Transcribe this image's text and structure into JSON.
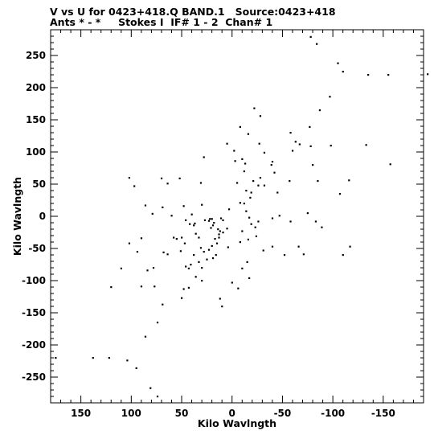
{
  "header": {
    "line1": "V vs U for 0423+418.Q BAND.1   Source:0423+418",
    "line2": "Ants * - *     Stokes I  IF# 1 - 2  Chan# 1"
  },
  "chart_data": {
    "type": "scatter",
    "title": "V vs U for 0423+418.Q BAND.1   Source:0423+418",
    "subtitle": "Ants * - *     Stokes I  IF# 1 - 2  Chan# 1",
    "xlabel": "Kilo Wavlngth",
    "ylabel": "Kilo Wavlngth",
    "xlim": [
      180,
      -190
    ],
    "ylim": [
      -290,
      290
    ],
    "x_ticks": [
      150,
      100,
      50,
      0,
      -50,
      -100,
      -150
    ],
    "y_ticks": [
      250,
      200,
      150,
      100,
      50,
      0,
      -50,
      -100,
      -150,
      -200,
      -250
    ],
    "x_tick_labels": [
      "150",
      "100",
      "50",
      "0",
      "-50",
      "-100",
      "-150"
    ],
    "y_tick_labels": [
      "250",
      "200",
      "150",
      "100",
      "50",
      "0",
      "-50",
      "-100",
      "-150",
      "-200",
      "-250"
    ],
    "grid": false,
    "marker_color": "#000000",
    "points": [
      [
        -78,
        279
      ],
      [
        -84,
        268
      ],
      [
        -105,
        238
      ],
      [
        -110,
        225
      ],
      [
        -135,
        220
      ],
      [
        -155,
        220
      ],
      [
        -194,
        221
      ],
      [
        -97,
        186
      ],
      [
        -87,
        165
      ],
      [
        -22,
        168
      ],
      [
        -28,
        156
      ],
      [
        -77,
        139
      ],
      [
        -58,
        130
      ],
      [
        -63,
        116
      ],
      [
        -67,
        112
      ],
      [
        -8,
        139
      ],
      [
        -16,
        128
      ],
      [
        -27,
        113
      ],
      [
        -32,
        99
      ],
      [
        -60,
        102
      ],
      [
        -78,
        109
      ],
      [
        -98,
        110
      ],
      [
        -133,
        111
      ],
      [
        5,
        113
      ],
      [
        -2,
        102
      ],
      [
        -10,
        89
      ],
      [
        -13,
        82
      ],
      [
        28,
        92
      ],
      [
        -40,
        85
      ],
      [
        -39,
        80
      ],
      [
        -80,
        80
      ],
      [
        -157,
        81
      ],
      [
        -85,
        55
      ],
      [
        -116,
        56
      ],
      [
        -107,
        35
      ],
      [
        -3,
        86
      ],
      [
        -12,
        70
      ],
      [
        -42,
        68
      ],
      [
        -28,
        60
      ],
      [
        -21,
        55
      ],
      [
        -26,
        48
      ],
      [
        -5,
        52
      ],
      [
        -32,
        48
      ],
      [
        -57,
        55
      ],
      [
        -45,
        37
      ],
      [
        -14,
        40
      ],
      [
        -19,
        37
      ],
      [
        -18,
        29
      ],
      [
        -8,
        21
      ],
      [
        -12,
        20
      ],
      [
        -14,
        8
      ],
      [
        -17,
        -2
      ],
      [
        -19,
        -12
      ],
      [
        -23,
        -17
      ],
      [
        -26,
        -8
      ],
      [
        -40,
        -3
      ],
      [
        -47,
        1
      ],
      [
        -58,
        -8
      ],
      [
        -75,
        5
      ],
      [
        -83,
        -8
      ],
      [
        -89,
        -17
      ],
      [
        -117,
        -47
      ],
      [
        -110,
        -60
      ],
      [
        -66,
        -47
      ],
      [
        -71,
        -59
      ],
      [
        -52,
        -60
      ],
      [
        -40,
        -47
      ],
      [
        -31,
        -53
      ],
      [
        -24,
        -31
      ],
      [
        -10,
        -23
      ],
      [
        -8,
        -40
      ],
      [
        -16,
        -36
      ],
      [
        -15,
        -71
      ],
      [
        -10,
        -81
      ],
      [
        -6,
        -112
      ],
      [
        -17,
        -96
      ],
      [
        0,
        -103
      ],
      [
        10,
        -140
      ],
      [
        12,
        -128
      ],
      [
        13,
        -33
      ],
      [
        12,
        -23
      ],
      [
        14,
        -20
      ],
      [
        17,
        -35
      ],
      [
        23,
        -52
      ],
      [
        20,
        -46
      ],
      [
        16,
        -60
      ],
      [
        19,
        -65
      ],
      [
        28,
        -55
      ],
      [
        31,
        -49
      ],
      [
        38,
        -60
      ],
      [
        43,
        -81
      ],
      [
        46,
        -78
      ],
      [
        33,
        -33
      ],
      [
        36,
        -27
      ],
      [
        42,
        -12
      ],
      [
        30,
        -100
      ],
      [
        36,
        -94
      ],
      [
        47,
        -42
      ],
      [
        55,
        -35
      ],
      [
        58,
        -33
      ],
      [
        43,
        -111
      ],
      [
        48,
        -113
      ],
      [
        50,
        -127
      ],
      [
        64,
        -59
      ],
      [
        68,
        -56
      ],
      [
        78,
        -80
      ],
      [
        77,
        -109
      ],
      [
        90,
        -34
      ],
      [
        94,
        -55
      ],
      [
        102,
        -42
      ],
      [
        69,
        -137
      ],
      [
        74,
        -165
      ],
      [
        84,
        -84
      ],
      [
        90,
        -109
      ],
      [
        86,
        -187
      ],
      [
        95,
        -236
      ],
      [
        104,
        -224
      ],
      [
        122,
        -220
      ],
      [
        138,
        -220
      ],
      [
        175,
        -220
      ],
      [
        81,
        -267
      ],
      [
        74,
        -280
      ],
      [
        120,
        -110
      ],
      [
        110,
        -81
      ],
      [
        102,
        60
      ],
      [
        97,
        47
      ],
      [
        70,
        59
      ],
      [
        64,
        51
      ],
      [
        52,
        59
      ],
      [
        86,
        17
      ],
      [
        79,
        4
      ],
      [
        69,
        14
      ],
      [
        60,
        1
      ],
      [
        48,
        16
      ],
      [
        50,
        -33
      ],
      [
        40,
        3
      ],
      [
        38,
        -14
      ],
      [
        51,
        -54
      ],
      [
        46,
        -6
      ],
      [
        41,
        -75
      ],
      [
        33,
        -71
      ],
      [
        37,
        -11
      ],
      [
        23,
        -7
      ],
      [
        27,
        -6
      ],
      [
        22,
        -4
      ],
      [
        21,
        -18
      ],
      [
        19,
        -14
      ],
      [
        11,
        -3
      ],
      [
        9,
        -6
      ],
      [
        15,
        -42
      ],
      [
        25,
        -67
      ],
      [
        30,
        -80
      ],
      [
        3,
        11
      ],
      [
        5,
        -19
      ],
      [
        9,
        -25
      ],
      [
        31,
        52
      ],
      [
        18,
        -10
      ],
      [
        20,
        -4
      ],
      [
        13,
        -28
      ],
      [
        4,
        -48
      ],
      [
        30,
        18
      ]
    ]
  }
}
